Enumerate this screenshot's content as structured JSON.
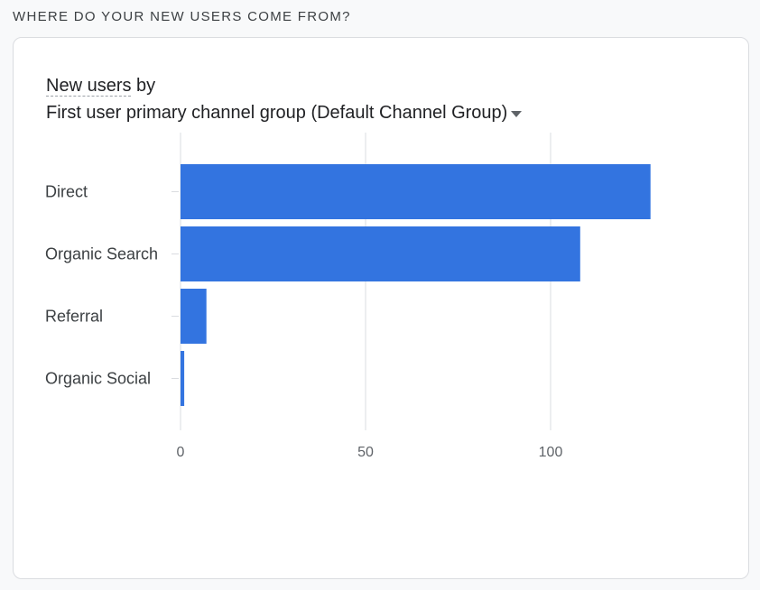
{
  "section_title": "WHERE DO YOUR NEW USERS COME FROM?",
  "card": {
    "metric_label": "New users",
    "by_text": "by",
    "dimension_label": "First user primary channel group (Default Channel Group)"
  },
  "colors": {
    "bar": "#3374e0",
    "grid": "#dadce0",
    "text": "#3c4043"
  },
  "chart_data": {
    "type": "bar",
    "orientation": "horizontal",
    "categories": [
      "Direct",
      "Organic Search",
      "Referral",
      "Organic Social"
    ],
    "values": [
      127,
      108,
      7,
      1
    ],
    "xlim": [
      0,
      150
    ],
    "xticks": [
      0,
      50,
      100
    ],
    "grid": true
  }
}
